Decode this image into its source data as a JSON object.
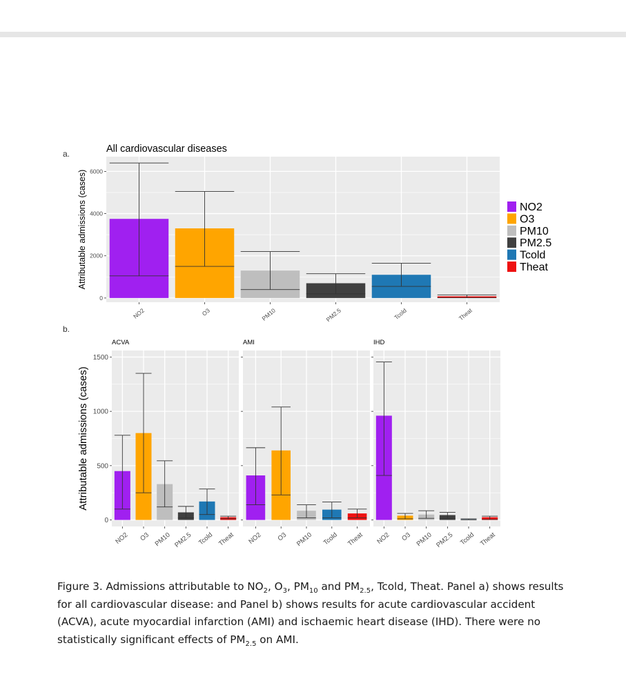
{
  "figure": {
    "panel_a_label": "a.",
    "panel_b_label": "b.",
    "caption": {
      "p1": "Figure 3. Admissions attributable to NO",
      "s1": "2",
      "p2": ", O",
      "s2": "3",
      "p3": ", PM",
      "s3": "10",
      "p4": " and PM",
      "s4": "2.5",
      "p5": ", Tcold, Theat. Panel a) shows results for all cardiovascular disease: and Panel b) shows results for acute cardiovascular accident (ACVA), acute myocardial infarction (AMI) and ischaemic heart disease (IHD). There were no statistically significant effects of PM",
      "s5": "2.5",
      "p6": " on AMI."
    }
  },
  "colors": {
    "NO2": "#a020f0",
    "O3": "#ffa500",
    "PM10": "#bebebe",
    "PM2.5": "#404040",
    "Tcold": "#1f78b4",
    "Theat": "#ee1111",
    "panel_bg": "#ebebeb",
    "grid": "#ffffff"
  },
  "chart_data": [
    {
      "type": "bar",
      "panel": "a",
      "title": "All cardiovascular diseases",
      "ylabel": "Attributable admissions (cases)",
      "xlabel": "",
      "categories": [
        "NO2",
        "O3",
        "PM10",
        "PM2.5",
        "Tcold",
        "Theat"
      ],
      "values": [
        3750,
        3300,
        1300,
        700,
        1100,
        80
      ],
      "ci_low": [
        1050,
        1500,
        400,
        200,
        550,
        10
      ],
      "ci_high": [
        6400,
        5050,
        2200,
        1150,
        1650,
        150
      ],
      "ylim": [
        -200,
        6700
      ],
      "yticks": [
        0,
        2000,
        4000,
        6000
      ],
      "ytick_labels": [
        "0",
        "2000",
        "4000",
        "6000"
      ],
      "grid": true,
      "legend": {
        "placement": "right",
        "entries": [
          "NO2",
          "O3",
          "PM10",
          "PM2.5",
          "Tcold",
          "Theat"
        ]
      }
    },
    {
      "type": "bar",
      "panel": "b",
      "title": "ACVA",
      "ylabel": "Attributable admissions (cases)",
      "categories": [
        "NO2",
        "O3",
        "PM10",
        "PM2.5",
        "Tcold",
        "Theat"
      ],
      "values": [
        450,
        800,
        330,
        70,
        170,
        25
      ],
      "ci_low": [
        100,
        250,
        120,
        20,
        50,
        10
      ],
      "ci_high": [
        780,
        1350,
        545,
        125,
        285,
        35
      ],
      "ylim": [
        -60,
        1560
      ],
      "yticks": [
        0,
        500,
        1000,
        1500
      ],
      "ytick_labels": [
        "0",
        "500",
        "1000",
        "1500"
      ],
      "grid": true
    },
    {
      "type": "bar",
      "panel": "b",
      "title": "AMI",
      "categories": [
        "NO2",
        "O3",
        "PM10",
        "Tcold",
        "Theat"
      ],
      "values": [
        410,
        640,
        85,
        95,
        60
      ],
      "ci_low": [
        140,
        230,
        20,
        20,
        20
      ],
      "ci_high": [
        665,
        1040,
        140,
        165,
        100
      ],
      "ylim": [
        -60,
        1560
      ],
      "grid": true
    },
    {
      "type": "bar",
      "panel": "b",
      "title": "IHD",
      "categories": [
        "NO2",
        "O3",
        "PM10",
        "PM2.5",
        "Tcold",
        "Theat"
      ],
      "values": [
        960,
        40,
        50,
        45,
        5,
        25
      ],
      "ci_low": [
        410,
        10,
        15,
        15,
        2,
        5
      ],
      "ci_high": [
        1455,
        60,
        85,
        70,
        10,
        35
      ],
      "ylim": [
        -60,
        1560
      ],
      "grid": true
    }
  ]
}
